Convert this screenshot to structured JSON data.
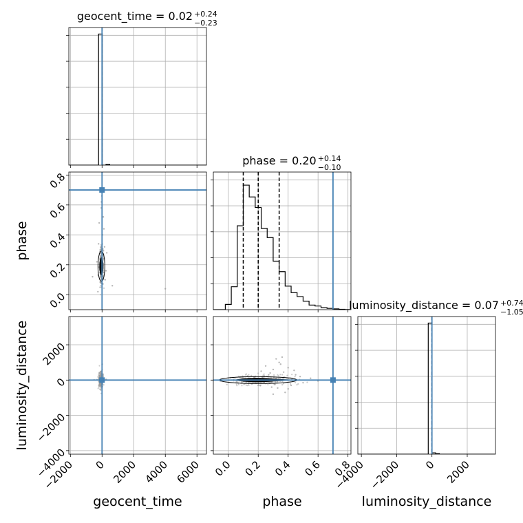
{
  "chart_data": {
    "type": "corner",
    "colors": {
      "truth": "#4682b4",
      "hist": "#000000",
      "scatter": "#9a9a9a",
      "grid": "#b0b0b0"
    },
    "grid": true,
    "parameters": [
      {
        "name": "geocent_time",
        "xlabel": "geocent_time",
        "range": [
          -2100,
          6600
        ],
        "ticks": [
          -2000,
          0,
          2000,
          4000,
          6000
        ],
        "tick_labels": [
          "−2000",
          "0",
          "2000",
          "4000",
          "6000"
        ],
        "truth": 0,
        "title": {
          "label": "geocent_time = 0.02",
          "sup": "+0.24",
          "sub": "−0.23"
        },
        "quantiles": [
          -0.21,
          0.02,
          0.26
        ],
        "histogram": {
          "bin_edges": [
            -2100,
            -1865,
            -1630,
            -1395,
            -1160,
            -925,
            -690,
            -455,
            -220,
            15,
            250,
            485,
            720,
            955,
            1190,
            1425,
            1660,
            1895,
            2130,
            2365,
            2600,
            2835,
            3070,
            3305,
            3540,
            3775,
            4010,
            4245,
            4480,
            4715,
            4950,
            5185,
            5420,
            5655,
            5890,
            6125,
            6360,
            6595
          ],
          "counts": [
            0,
            0,
            0,
            0,
            0,
            0,
            0,
            0,
            1.0,
            0.0,
            0.006,
            0,
            0,
            0,
            0,
            0,
            0,
            0,
            0,
            0,
            0,
            0,
            0,
            0,
            0,
            0,
            0,
            0,
            0,
            0,
            0,
            0,
            0,
            0,
            0,
            0,
            0
          ]
        }
      },
      {
        "name": "phase",
        "xlabel": "phase",
        "ylabel": "phase",
        "range": [
          -0.1,
          0.82
        ],
        "ticks": [
          0.0,
          0.2,
          0.4,
          0.6,
          0.8
        ],
        "tick_labels": [
          "0.0",
          "0.2",
          "0.4",
          "0.6",
          "0.8"
        ],
        "truth": 0.7,
        "title": {
          "label": "phase = 0.20",
          "sup": "+0.14",
          "sub": "−0.10"
        },
        "quantiles": [
          0.1,
          0.2,
          0.34
        ],
        "histogram": {
          "bin_edges": [
            -0.1,
            -0.06,
            -0.02,
            0.02,
            0.06,
            0.1,
            0.14,
            0.18,
            0.22,
            0.26,
            0.3,
            0.34,
            0.38,
            0.42,
            0.46,
            0.5,
            0.54,
            0.58,
            0.62,
            0.66,
            0.7,
            0.74,
            0.78,
            0.82
          ],
          "counts": [
            0,
            0,
            0.04,
            0.175,
            0.64,
            0.95,
            0.86,
            0.78,
            0.62,
            0.55,
            0.37,
            0.29,
            0.18,
            0.13,
            0.1,
            0.065,
            0.035,
            0.028,
            0.015,
            0.01,
            0.006,
            0.003,
            0.001
          ]
        }
      },
      {
        "name": "luminosity_distance",
        "xlabel": "luminosity_distance",
        "ylabel": "luminosity_distance",
        "range": [
          -4200,
          3600
        ],
        "ticks": [
          -4000,
          -2000,
          0,
          2000
        ],
        "tick_labels": [
          "−4000",
          "−2000",
          "0",
          "2000"
        ],
        "y_ticks": [
          -4000,
          -2000,
          0,
          2000
        ],
        "y_tick_labels": [
          "−4000",
          "−2000",
          "0",
          "2000"
        ],
        "truth": 0,
        "title": {
          "label": "luminosity_distance = 0.07",
          "sup": "+0.74",
          "sub": "−1.05"
        },
        "quantiles": [
          -0.98,
          0.07,
          0.81
        ],
        "histogram": {
          "bin_edges": [
            -4200,
            -3990,
            -3780,
            -3570,
            -3360,
            -3150,
            -2940,
            -2730,
            -2520,
            -2310,
            -2100,
            -1890,
            -1680,
            -1470,
            -1260,
            -1050,
            -840,
            -630,
            -420,
            -210,
            0,
            210,
            420,
            630,
            840,
            1050,
            1260,
            1470,
            1680,
            1890,
            2100,
            2310,
            2520,
            2730,
            2940,
            3150,
            3360,
            3570
          ],
          "counts": [
            0,
            0,
            0,
            0,
            0,
            0,
            0,
            0,
            0,
            0,
            0,
            0,
            0,
            0,
            0,
            0,
            0,
            0,
            0,
            1.0,
            0.01,
            0.005,
            0,
            0,
            0,
            0,
            0,
            0,
            0,
            0,
            0,
            0,
            0,
            0,
            0,
            0,
            0
          ]
        }
      }
    ],
    "pairs": [
      {
        "x_param": "geocent_time",
        "y_param": "phase",
        "truth": [
          0,
          0.7
        ],
        "core": [
          [
            -60,
            0.16
          ],
          [
            -30,
            0.2
          ],
          [
            -20,
            0.13
          ],
          [
            -50,
            0.26
          ],
          [
            -10,
            0.3
          ],
          [
            -40,
            0.1
          ],
          [
            -20,
            0.22
          ],
          [
            -70,
            0.18
          ]
        ],
        "samples": [
          [
            -320,
            0.22
          ],
          [
            -120,
            0.05
          ],
          [
            250,
            0.16
          ],
          [
            -220,
            0.34
          ],
          [
            80,
            0.52
          ],
          [
            -40,
            0.62
          ],
          [
            120,
            0.44
          ],
          [
            650,
            0.06
          ],
          [
            4000,
            0.04
          ],
          [
            -600,
            0.12
          ],
          [
            300,
            0.28
          ],
          [
            -50,
            0.58
          ],
          [
            30,
            0.4
          ],
          [
            -90,
            0.08
          ],
          [
            160,
            0.32
          ],
          [
            -180,
            0.48
          ],
          [
            60,
            0.24
          ],
          [
            -10,
            0.66
          ],
          [
            200,
            0.1
          ],
          [
            -260,
            0.02
          ]
        ]
      },
      {
        "x_param": "geocent_time",
        "y_param": "luminosity_distance",
        "truth": [
          0,
          0
        ],
        "core": [
          [
            -80,
            -20
          ],
          [
            -40,
            30
          ],
          [
            -110,
            0
          ],
          [
            -20,
            10
          ],
          [
            -60,
            -50
          ],
          [
            -130,
            40
          ]
        ],
        "samples": [
          [
            -320,
            20
          ],
          [
            120,
            -60
          ],
          [
            -40,
            500
          ],
          [
            20,
            -350
          ],
          [
            260,
            40
          ],
          [
            -200,
            -90
          ],
          [
            60,
            300
          ],
          [
            -90,
            -220
          ],
          [
            10,
            900
          ],
          [
            -500,
            10
          ]
        ]
      },
      {
        "x_param": "phase",
        "y_param": "luminosity_distance",
        "truth": [
          0.7,
          0
        ],
        "core": [
          [
            0.06,
            0
          ],
          [
            0.1,
            20
          ],
          [
            0.14,
            -30
          ],
          [
            0.18,
            40
          ],
          [
            0.22,
            -20
          ],
          [
            0.26,
            10
          ],
          [
            0.3,
            0
          ],
          [
            0.34,
            -10
          ],
          [
            0.38,
            20
          ],
          [
            0.42,
            -10
          ],
          [
            0.12,
            -60
          ],
          [
            0.2,
            60
          ],
          [
            0.16,
            30
          ],
          [
            0.24,
            -50
          ]
        ],
        "samples": [
          [
            0.3,
            600
          ],
          [
            0.32,
            1200
          ],
          [
            0.35,
            900
          ],
          [
            0.28,
            400
          ],
          [
            0.38,
            -700
          ],
          [
            0.33,
            -450
          ],
          [
            0.4,
            700
          ],
          [
            0.42,
            -300
          ],
          [
            0.25,
            800
          ],
          [
            0.36,
            1300
          ],
          [
            0.45,
            300
          ],
          [
            0.5,
            -150
          ],
          [
            0.48,
            200
          ],
          [
            0.3,
            -800
          ],
          [
            0.27,
            300
          ],
          [
            0.22,
            500
          ],
          [
            0.4,
            -500
          ],
          [
            0.34,
            1000
          ],
          [
            0.31,
            -250
          ],
          [
            0.37,
            450
          ],
          [
            0.29,
            -400
          ],
          [
            0.44,
            550
          ],
          [
            0.55,
            100
          ],
          [
            0.6,
            -50
          ],
          [
            0.2,
            -300
          ]
        ]
      }
    ]
  }
}
